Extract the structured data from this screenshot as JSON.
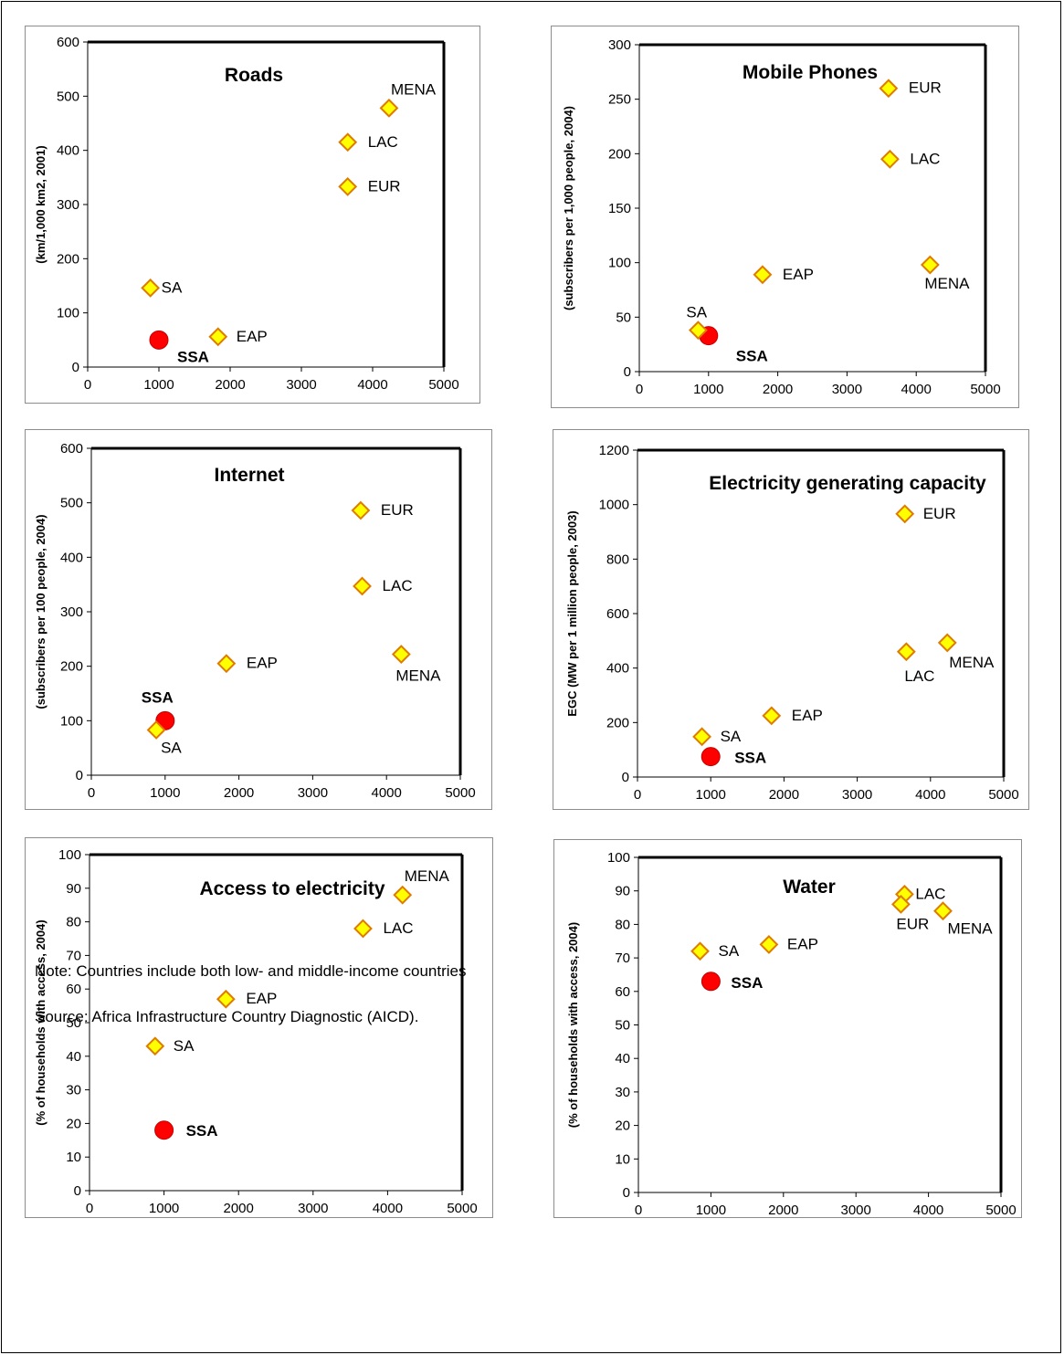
{
  "note": "Note: Countries include both low- and middle-income countries",
  "source": "Source: Africa Infrastructure Country Diagnostic (AICD).",
  "chart_data": [
    {
      "type": "scatter",
      "title": "Roads",
      "ylabel": "(km/1,000 km2, 2001)",
      "xlabel": "",
      "xlim": [
        0,
        5000
      ],
      "ylim": [
        0,
        600
      ],
      "xticks": [
        "0",
        "1000",
        "2000",
        "3000",
        "4000",
        "5000"
      ],
      "yticks": [
        "0",
        "100",
        "200",
        "300",
        "400",
        "500",
        "600"
      ],
      "grid": false,
      "points": [
        {
          "label": "MENA",
          "x": 4230,
          "y": 478,
          "marker": "diamond"
        },
        {
          "label": "LAC",
          "x": 3650,
          "y": 415,
          "marker": "diamond"
        },
        {
          "label": "EUR",
          "x": 3650,
          "y": 333,
          "marker": "diamond"
        },
        {
          "label": "SA",
          "x": 880,
          "y": 146,
          "marker": "diamond"
        },
        {
          "label": "EAP",
          "x": 1830,
          "y": 56,
          "marker": "diamond"
        },
        {
          "label": "SSA",
          "x": 1000,
          "y": 50,
          "marker": "circle"
        }
      ]
    },
    {
      "type": "scatter",
      "title": "Mobile Phones",
      "ylabel": "(subscribers per 1,000 people, 2004)",
      "xlabel": "",
      "xlim": [
        0,
        5000
      ],
      "ylim": [
        0,
        300
      ],
      "xticks": [
        "0",
        "1000",
        "2000",
        "3000",
        "4000",
        "5000"
      ],
      "yticks": [
        "0",
        "50",
        "100",
        "150",
        "200",
        "250",
        "300"
      ],
      "grid": false,
      "points": [
        {
          "label": "EUR",
          "x": 3600,
          "y": 260,
          "marker": "diamond"
        },
        {
          "label": "LAC",
          "x": 3620,
          "y": 195,
          "marker": "diamond"
        },
        {
          "label": "MENA",
          "x": 4200,
          "y": 98,
          "marker": "diamond"
        },
        {
          "label": "EAP",
          "x": 1780,
          "y": 89,
          "marker": "diamond"
        },
        {
          "label": "SSA",
          "x": 1000,
          "y": 33,
          "marker": "circle"
        },
        {
          "label": "SA",
          "x": 850,
          "y": 38,
          "marker": "diamond"
        }
      ]
    },
    {
      "type": "scatter",
      "title": "Internet",
      "ylabel": "(subscribers per 100 people, 2004)",
      "xlabel": "",
      "xlim": [
        0,
        5000
      ],
      "ylim": [
        0,
        600
      ],
      "xticks": [
        "0",
        "1000",
        "2000",
        "3000",
        "4000",
        "5000"
      ],
      "yticks": [
        "0",
        "100",
        "200",
        "300",
        "400",
        "500",
        "600"
      ],
      "grid": false,
      "points": [
        {
          "label": "EUR",
          "x": 3650,
          "y": 486,
          "marker": "diamond"
        },
        {
          "label": "LAC",
          "x": 3670,
          "y": 347,
          "marker": "diamond"
        },
        {
          "label": "MENA",
          "x": 4200,
          "y": 222,
          "marker": "diamond"
        },
        {
          "label": "EAP",
          "x": 1830,
          "y": 205,
          "marker": "diamond"
        },
        {
          "label": "SSA",
          "x": 1000,
          "y": 100,
          "marker": "circle"
        },
        {
          "label": "SA",
          "x": 880,
          "y": 83,
          "marker": "diamond"
        }
      ]
    },
    {
      "type": "scatter",
      "title": "Electricity generating capacity",
      "ylabel": "EGC (MW per 1 million people, 2003)",
      "xlabel": "",
      "xlim": [
        0,
        5000
      ],
      "ylim": [
        0,
        1200
      ],
      "xticks": [
        "0",
        "1000",
        "2000",
        "3000",
        "4000",
        "5000"
      ],
      "yticks": [
        "0",
        "200",
        "400",
        "600",
        "800",
        "1000",
        "1200"
      ],
      "grid": false,
      "points": [
        {
          "label": "EUR",
          "x": 3650,
          "y": 966,
          "marker": "diamond"
        },
        {
          "label": "MENA",
          "x": 4230,
          "y": 493,
          "marker": "diamond"
        },
        {
          "label": "LAC",
          "x": 3670,
          "y": 460,
          "marker": "diamond"
        },
        {
          "label": "EAP",
          "x": 1830,
          "y": 225,
          "marker": "diamond"
        },
        {
          "label": "SA",
          "x": 880,
          "y": 148,
          "marker": "diamond"
        },
        {
          "label": "SSA",
          "x": 1000,
          "y": 75,
          "marker": "circle"
        }
      ]
    },
    {
      "type": "scatter",
      "title": "Access to electricity",
      "ylabel": "(% of households with access, 2004)",
      "xlabel": "",
      "xlim": [
        0,
        5000
      ],
      "ylim": [
        0,
        100
      ],
      "xticks": [
        "0",
        "1000",
        "2000",
        "3000",
        "4000",
        "5000"
      ],
      "yticks": [
        "0",
        "10",
        "20",
        "30",
        "40",
        "50",
        "60",
        "70",
        "80",
        "90",
        "100"
      ],
      "grid": false,
      "points": [
        {
          "label": "MENA",
          "x": 4200,
          "y": 88,
          "marker": "diamond"
        },
        {
          "label": "LAC",
          "x": 3670,
          "y": 78,
          "marker": "diamond"
        },
        {
          "label": "EAP",
          "x": 1830,
          "y": 57,
          "marker": "diamond"
        },
        {
          "label": "SA",
          "x": 880,
          "y": 43,
          "marker": "diamond"
        },
        {
          "label": "SSA",
          "x": 1000,
          "y": 18,
          "marker": "circle"
        }
      ]
    },
    {
      "type": "scatter",
      "title": "Water",
      "ylabel": "(% of households with access, 2004)",
      "xlabel": "",
      "xlim": [
        0,
        5000
      ],
      "ylim": [
        0,
        100
      ],
      "xticks": [
        "0",
        "1000",
        "2000",
        "3000",
        "4000",
        "5000"
      ],
      "yticks": [
        "0",
        "10",
        "20",
        "30",
        "40",
        "50",
        "60",
        "70",
        "80",
        "90",
        "100"
      ],
      "grid": false,
      "points": [
        {
          "label": "LAC",
          "x": 3670,
          "y": 89,
          "marker": "diamond"
        },
        {
          "label": "EUR",
          "x": 3620,
          "y": 86,
          "marker": "diamond"
        },
        {
          "label": "MENA",
          "x": 4200,
          "y": 84,
          "marker": "diamond"
        },
        {
          "label": "EAP",
          "x": 1800,
          "y": 74,
          "marker": "diamond"
        },
        {
          "label": "SA",
          "x": 850,
          "y": 72,
          "marker": "diamond"
        },
        {
          "label": "SSA",
          "x": 1000,
          "y": 63,
          "marker": "circle"
        }
      ]
    }
  ]
}
